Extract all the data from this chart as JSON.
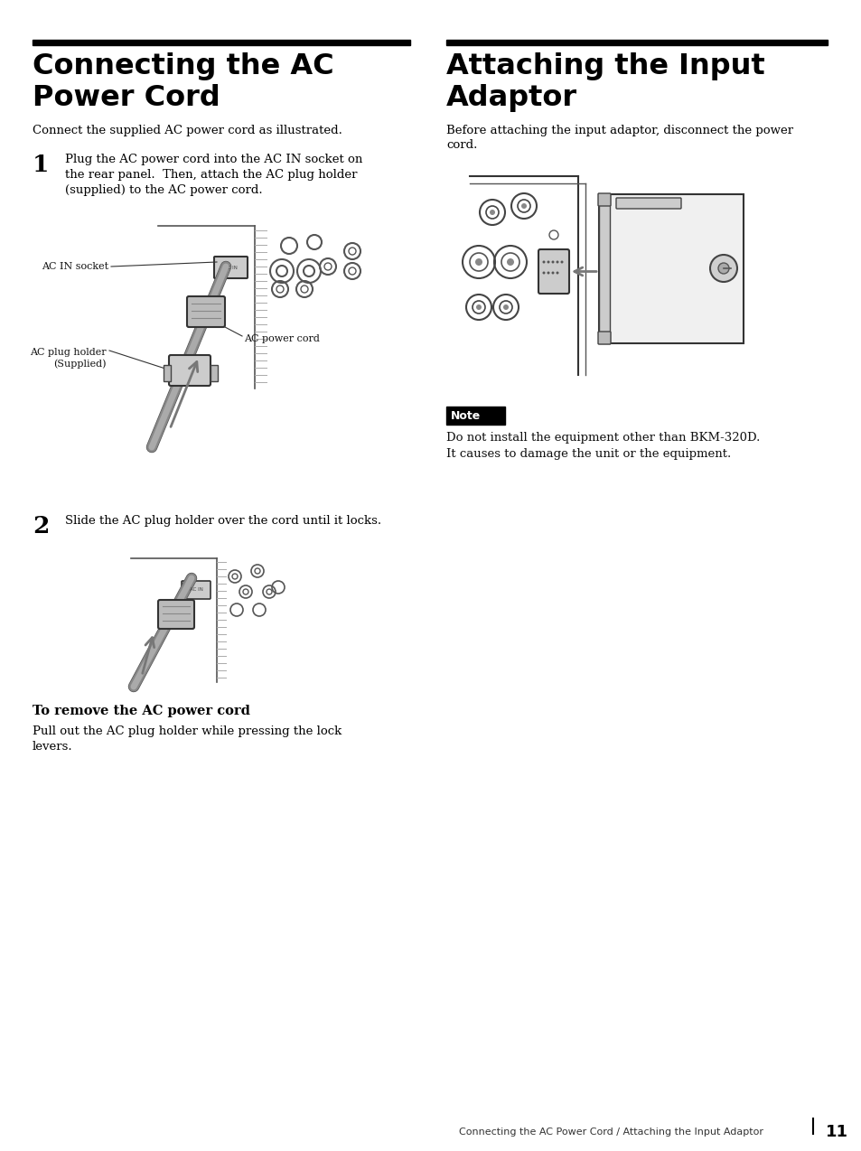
{
  "page_bg": "#ffffff",
  "title_left": "Connecting the AC\nPower Cord",
  "title_right": "Attaching the Input\nAdaptor",
  "subtitle_left": "Connect the supplied AC power cord as illustrated.",
  "subtitle_right": "Before attaching the input adaptor, disconnect the power\ncord.",
  "step1_num": "1",
  "step1_text": "Plug the AC power cord into the AC IN socket on\nthe rear panel.  Then, attach the AC plug holder\n(supplied) to the AC power cord.",
  "step2_num": "2",
  "step2_text": "Slide the AC plug holder over the cord until it locks.",
  "remove_title": "To remove the AC power cord",
  "remove_text": "Pull out the AC plug holder while pressing the lock\nlevers.",
  "note_label": "Note",
  "note_text": "Do not install the equipment other than BKM-320D.\nIt causes to damage the unit or the equipment.",
  "footer_text": "Connecting the AC Power Cord / Attaching the Input Adaptor",
  "footer_page": "11",
  "label_ac_in": "AC IN socket",
  "label_ac_plug": "AC plug holder\n(Supplied)",
  "label_ac_power": "AC power cord"
}
